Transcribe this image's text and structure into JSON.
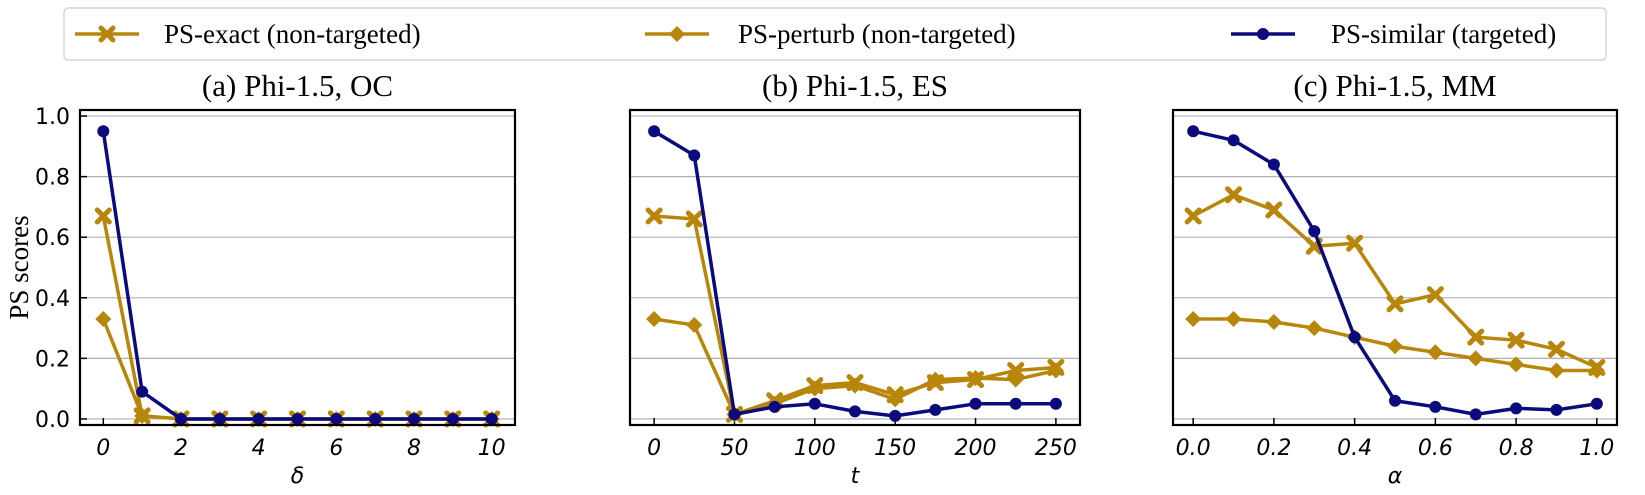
{
  "legend": {
    "placement": "top",
    "entries": [
      {
        "label": "PS-exact (non-targeted)",
        "color": "#B8860B",
        "marker": "x-cross"
      },
      {
        "label": "PS-perturb (non-targeted)",
        "color": "#B8860B",
        "marker": "diamond"
      },
      {
        "label": "PS-similar (targeted)",
        "color": "#0B0B7D",
        "marker": "circle"
      }
    ]
  },
  "chart_data": [
    {
      "type": "line",
      "title": "(a) Phi-1.5, OC",
      "xlabel": "δ",
      "ylabel": "PS scores",
      "xlim": [
        -0.6,
        10.6
      ],
      "ylim": [
        -0.02,
        1.02
      ],
      "xticks": [
        0,
        2,
        4,
        6,
        8,
        10
      ],
      "xtick_labels": [
        "0",
        "2",
        "4",
        "6",
        "8",
        "10"
      ],
      "yticks": [
        0.0,
        0.2,
        0.4,
        0.6,
        0.8,
        1.0
      ],
      "ytick_labels": [
        "0.0",
        "0.2",
        "0.4",
        "0.6",
        "0.8",
        "1.0"
      ],
      "grid": "horizontal",
      "x": [
        0,
        1,
        2,
        3,
        4,
        5,
        6,
        7,
        8,
        9,
        10
      ],
      "series": [
        {
          "name": "PS-exact (non-targeted)",
          "marker": "x-cross",
          "color": "#B8860B",
          "values": [
            0.67,
            0.01,
            0.0,
            0.0,
            0.0,
            0.0,
            0.0,
            0.0,
            0.0,
            0.0,
            0.0
          ]
        },
        {
          "name": "PS-perturb (non-targeted)",
          "marker": "diamond",
          "color": "#B8860B",
          "values": [
            0.33,
            0.01,
            0.0,
            0.0,
            0.0,
            0.0,
            0.0,
            0.0,
            0.0,
            0.0,
            0.0
          ]
        },
        {
          "name": "PS-similar (targeted)",
          "marker": "circle",
          "color": "#0B0B7D",
          "values": [
            0.95,
            0.09,
            0.0,
            0.0,
            0.0,
            0.0,
            0.0,
            0.0,
            0.0,
            0.0,
            0.0
          ]
        }
      ]
    },
    {
      "type": "line",
      "title": "(b) Phi-1.5, ES",
      "xlabel": "t",
      "ylabel": "",
      "xlim": [
        -15,
        265
      ],
      "ylim": [
        -0.02,
        1.02
      ],
      "xticks": [
        0,
        50,
        100,
        150,
        200,
        250
      ],
      "xtick_labels": [
        "0",
        "50",
        "100",
        "150",
        "200",
        "250"
      ],
      "yticks": [],
      "ytick_labels": [],
      "grid": "horizontal",
      "x": [
        0,
        25,
        50,
        75,
        100,
        125,
        150,
        175,
        200,
        225,
        250
      ],
      "series": [
        {
          "name": "PS-exact (non-targeted)",
          "marker": "x-cross",
          "color": "#B8860B",
          "values": [
            0.67,
            0.66,
            0.015,
            0.06,
            0.11,
            0.12,
            0.08,
            0.12,
            0.13,
            0.16,
            0.17
          ]
        },
        {
          "name": "PS-perturb (non-targeted)",
          "marker": "diamond",
          "color": "#B8860B",
          "values": [
            0.33,
            0.31,
            0.015,
            0.05,
            0.1,
            0.11,
            0.065,
            0.13,
            0.135,
            0.13,
            0.16
          ]
        },
        {
          "name": "PS-similar (targeted)",
          "marker": "circle",
          "color": "#0B0B7D",
          "values": [
            0.95,
            0.87,
            0.015,
            0.04,
            0.05,
            0.025,
            0.01,
            0.03,
            0.05,
            0.05,
            0.05
          ]
        }
      ]
    },
    {
      "type": "line",
      "title": "(c) Phi-1.5, MM",
      "xlabel": "α",
      "ylabel": "",
      "xlim": [
        -0.05,
        1.05
      ],
      "ylim": [
        -0.02,
        1.02
      ],
      "xticks": [
        0.0,
        0.2,
        0.4,
        0.6,
        0.8,
        1.0
      ],
      "xtick_labels": [
        "0.0",
        "0.2",
        "0.4",
        "0.6",
        "0.8",
        "1.0"
      ],
      "yticks": [],
      "ytick_labels": [],
      "grid": "horizontal",
      "x": [
        0.0,
        0.1,
        0.2,
        0.3,
        0.4,
        0.5,
        0.6,
        0.7,
        0.8,
        0.9,
        1.0
      ],
      "series": [
        {
          "name": "PS-exact (non-targeted)",
          "marker": "x-cross",
          "color": "#B8860B",
          "values": [
            0.67,
            0.74,
            0.69,
            0.57,
            0.58,
            0.38,
            0.41,
            0.27,
            0.26,
            0.23,
            0.17
          ]
        },
        {
          "name": "PS-perturb (non-targeted)",
          "marker": "diamond",
          "color": "#B8860B",
          "values": [
            0.33,
            0.33,
            0.32,
            0.3,
            0.27,
            0.24,
            0.22,
            0.2,
            0.18,
            0.16,
            0.16
          ]
        },
        {
          "name": "PS-similar (targeted)",
          "marker": "circle",
          "color": "#0B0B7D",
          "values": [
            0.95,
            0.92,
            0.84,
            0.62,
            0.27,
            0.06,
            0.04,
            0.015,
            0.035,
            0.03,
            0.05
          ]
        }
      ]
    }
  ]
}
